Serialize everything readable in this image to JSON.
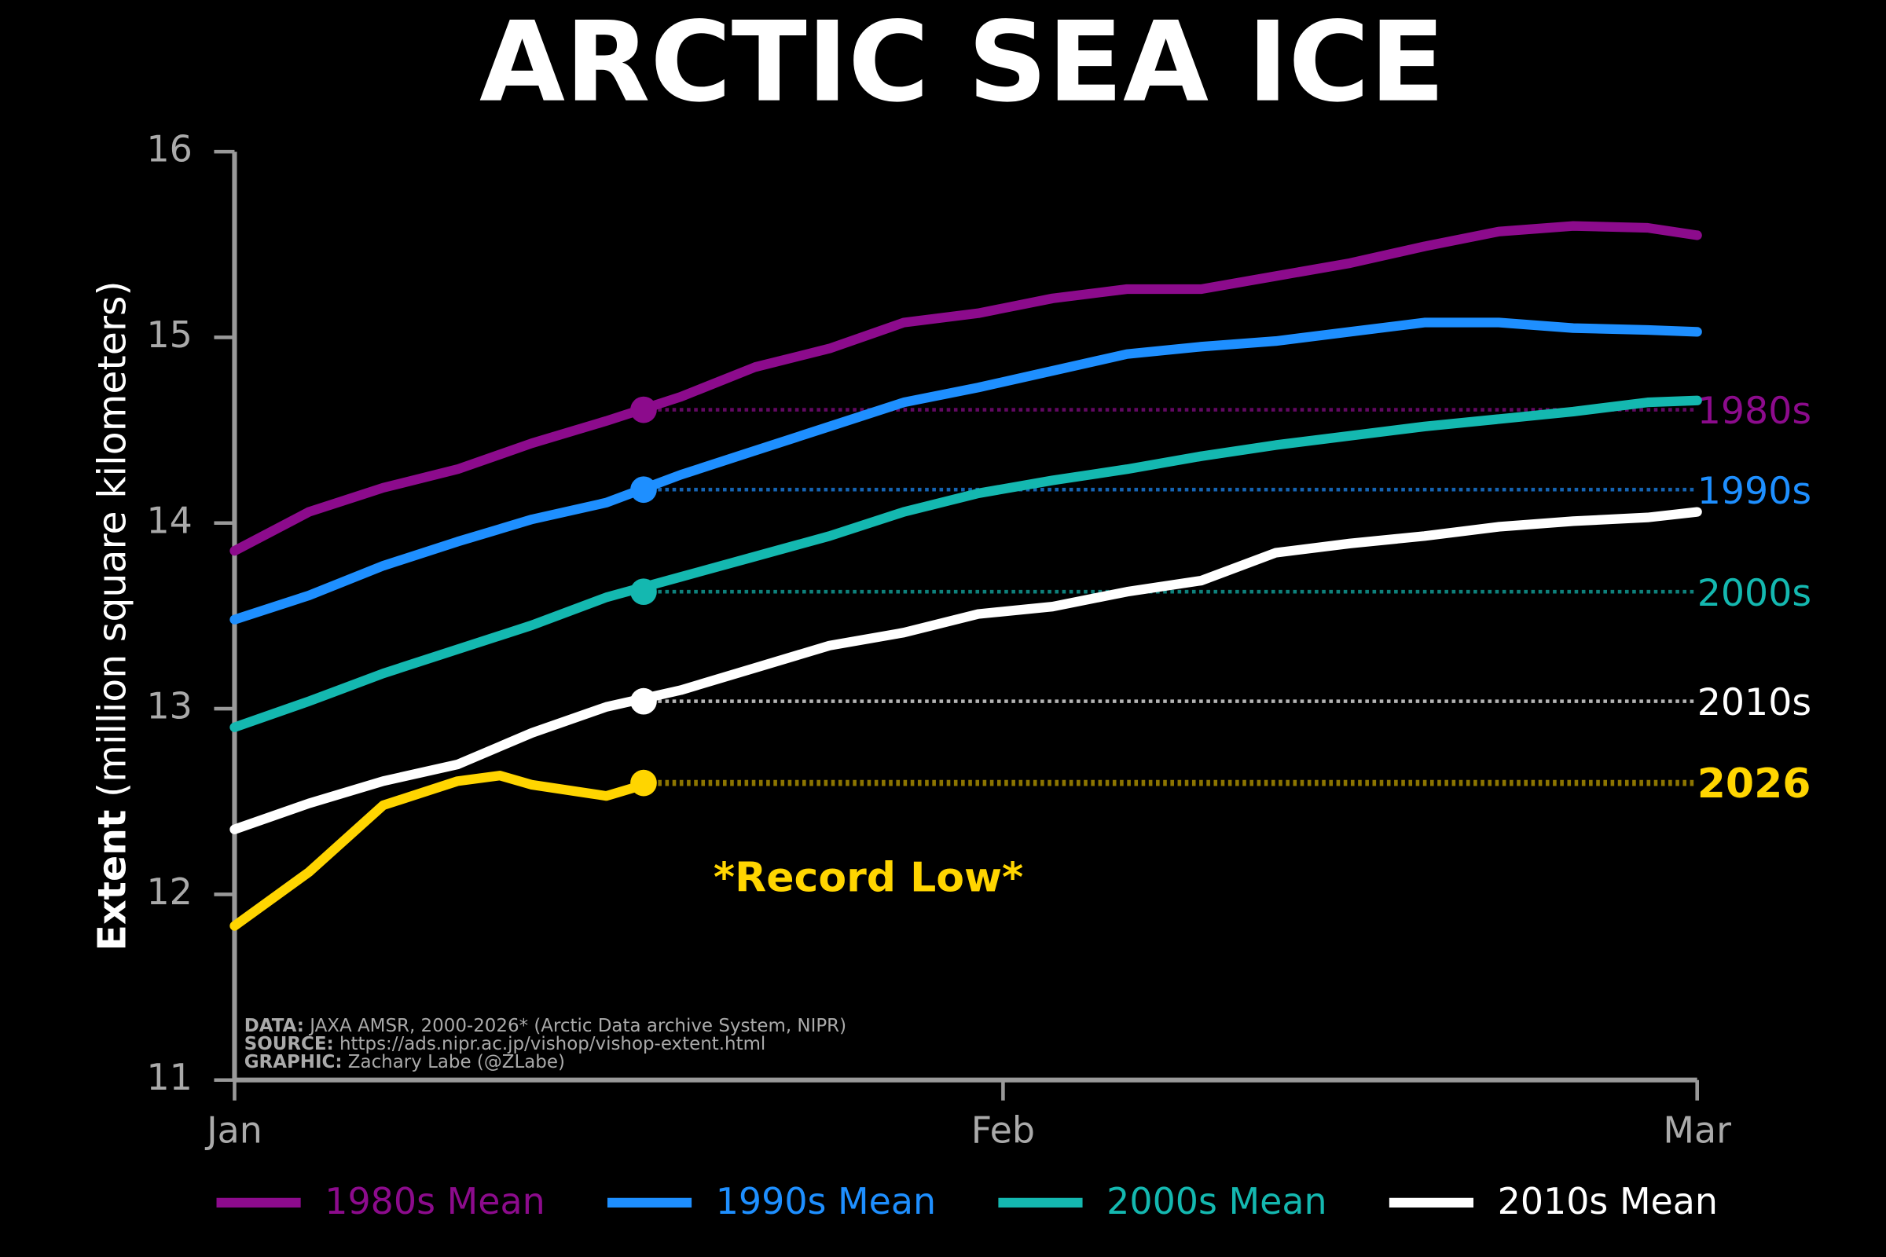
{
  "chart_data": {
    "type": "line",
    "title": "ARCTIC SEA ICE",
    "y_label_bold": "Extent",
    "y_label": "(million square kilometers)",
    "xlim": [
      0,
      59
    ],
    "xticks": [
      {
        "value": 0,
        "label": "Jan"
      },
      {
        "value": 31,
        "label": "Feb"
      },
      {
        "value": 59,
        "label": "Mar"
      }
    ],
    "ylim": [
      11,
      16
    ],
    "yticks": [
      11,
      12,
      13,
      14,
      15,
      16
    ],
    "series": [
      {
        "name": "1980s Mean",
        "color": "#8c0b8c",
        "x": [
          0,
          3,
          6,
          9,
          12,
          15,
          18,
          21,
          24,
          27,
          30,
          33,
          36,
          39,
          42,
          45,
          48,
          51,
          54,
          57,
          59
        ],
        "values": [
          13.85,
          14.06,
          14.19,
          14.29,
          14.43,
          14.55,
          14.68,
          14.84,
          14.94,
          15.08,
          15.13,
          15.21,
          15.26,
          15.26,
          15.33,
          15.4,
          15.49,
          15.57,
          15.6,
          15.59,
          15.55
        ]
      },
      {
        "name": "1990s Mean",
        "color": "#1e8fff",
        "x": [
          0,
          3,
          6,
          9,
          12,
          15,
          18,
          21,
          24,
          27,
          30,
          33,
          36,
          39,
          42,
          45,
          48,
          51,
          54,
          57,
          59
        ],
        "values": [
          13.48,
          13.61,
          13.77,
          13.9,
          14.02,
          14.11,
          14.26,
          14.39,
          14.52,
          14.65,
          14.73,
          14.82,
          14.91,
          14.95,
          14.98,
          15.03,
          15.08,
          15.08,
          15.05,
          15.04,
          15.03
        ]
      },
      {
        "name": "2000s Mean",
        "color": "#14b8b0",
        "x": [
          0,
          3,
          6,
          9,
          12,
          15,
          18,
          21,
          24,
          27,
          30,
          33,
          36,
          39,
          42,
          45,
          48,
          51,
          54,
          57,
          59
        ],
        "values": [
          12.9,
          13.04,
          13.19,
          13.32,
          13.45,
          13.6,
          13.71,
          13.82,
          13.93,
          14.06,
          14.16,
          14.23,
          14.29,
          14.36,
          14.42,
          14.47,
          14.52,
          14.56,
          14.6,
          14.65,
          14.66
        ]
      },
      {
        "name": "2010s Mean",
        "color": "#ffffff",
        "x": [
          0,
          3,
          6,
          9,
          12,
          15,
          18,
          21,
          24,
          27,
          30,
          33,
          36,
          39,
          42,
          45,
          48,
          51,
          54,
          57,
          59
        ],
        "values": [
          12.35,
          12.49,
          12.61,
          12.7,
          12.87,
          13.01,
          13.1,
          13.22,
          13.34,
          13.41,
          13.51,
          13.55,
          13.63,
          13.69,
          13.84,
          13.89,
          13.93,
          13.98,
          14.01,
          14.03,
          14.06
        ]
      }
    ],
    "current": {
      "name": "2026",
      "color": "#ffd500",
      "x": [
        0,
        3,
        6,
        9,
        10.7,
        12,
        15,
        16.5
      ],
      "values": [
        11.83,
        12.12,
        12.48,
        12.61,
        12.64,
        12.59,
        12.53,
        12.59
      ]
    },
    "reference_x": 16.5,
    "reference_lines": [
      {
        "label": "1980s",
        "value": 14.61,
        "color": "#8c0b8c"
      },
      {
        "label": "1990s",
        "value": 14.18,
        "color": "#1e8fff"
      },
      {
        "label": "2000s",
        "value": 13.63,
        "color": "#14b8b0"
      },
      {
        "label": "2010s",
        "value": 13.04,
        "color": "#ffffff"
      },
      {
        "label": "2026",
        "value": 12.6,
        "color": "#ffd500"
      }
    ],
    "annotation": "*Record Low*",
    "credits": [
      {
        "label": "DATA:",
        "text": "JAXA AMSR, 2000-2026* (Arctic Data archive System, NIPR)"
      },
      {
        "label": "SOURCE:",
        "text": "https://ads.nipr.ac.jp/vishop/vishop-extent.html"
      },
      {
        "label": "GRAPHIC:",
        "text": "Zachary Labe (@ZLabe)"
      }
    ]
  }
}
